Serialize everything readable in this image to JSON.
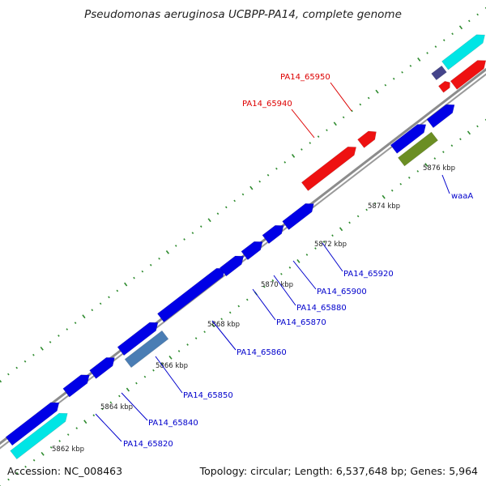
{
  "title": "Pseudomonas aeruginosa UCBPP-PA14, complete genome",
  "accession": "Accession: NC_008463",
  "summary": "Topology: circular; Length: 6,537,648 bp; Genes: 5,964",
  "colors": {
    "backbone": "#8c8c8c",
    "cds_forward": "#0000e6",
    "cds_reverse": "#ee1111",
    "rna": "#00e5e5",
    "highlight_steel": "#4a7db4",
    "highlight_olive": "#6b8e23",
    "highlight_navy": "#44448a",
    "tick": "#2e8b2e",
    "label_blue": "#0000cc",
    "label_red": "#dd0000"
  },
  "ticks": [
    {
      "label": "5862 kbp"
    },
    {
      "label": "5864 kbp"
    },
    {
      "label": "5866 kbp"
    },
    {
      "label": "5868 kbp"
    },
    {
      "label": "5870 kbp"
    },
    {
      "label": "5872 kbp"
    },
    {
      "label": "5874 kbp"
    },
    {
      "label": "5876 kbp"
    }
  ],
  "gene_labels": [
    {
      "name": "PA14_65820",
      "color": "label_blue"
    },
    {
      "name": "PA14_65840",
      "color": "label_blue"
    },
    {
      "name": "PA14_65850",
      "color": "label_blue"
    },
    {
      "name": "PA14_65860",
      "color": "label_blue"
    },
    {
      "name": "PA14_65870",
      "color": "label_blue"
    },
    {
      "name": "PA14_65880",
      "color": "label_blue"
    },
    {
      "name": "PA14_65900",
      "color": "label_blue"
    },
    {
      "name": "PA14_65920",
      "color": "label_blue"
    },
    {
      "name": "waaA",
      "color": "label_blue"
    },
    {
      "name": "PA14_65940",
      "color": "label_red"
    },
    {
      "name": "PA14_65950",
      "color": "label_red"
    }
  ]
}
